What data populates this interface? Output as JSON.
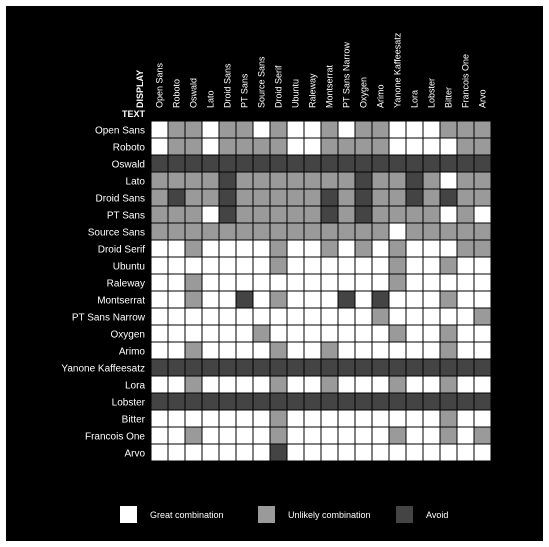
{
  "chart_data": {
    "type": "heatmap",
    "column_axis_title": "DISPLAY",
    "row_axis_title": "TEXT",
    "columns": [
      "Open Sans",
      "Roboto",
      "Oswald",
      "Lato",
      "Droid Sans",
      "PT Sans",
      "Source Sans",
      "Droid Serif",
      "Ubuntu",
      "Raleway",
      "Montserrat",
      "PT Sans Narrow",
      "Oxygen",
      "Arimo",
      "Yanone Kaffeesatz",
      "Lora",
      "Lobster",
      "Bitter",
      "Francois One",
      "Arvo"
    ],
    "rows": [
      "Open Sans",
      "Roboto",
      "Oswald",
      "Lato",
      "Droid Sans",
      "PT Sans",
      "Source Sans",
      "Droid Serif",
      "Ubuntu",
      "Raleway",
      "Montserrat",
      "PT Sans Narrow",
      "Oxygen",
      "Arimo",
      "Yanone Kaffeesatz",
      "Lora",
      "Lobster",
      "Bitter",
      "Francois One",
      "Arvo"
    ],
    "levels": [
      {
        "value": 2,
        "label": "Great combination",
        "color": "#ffffff"
      },
      {
        "value": 1,
        "label": "Unlikely combination",
        "color": "#9a9a9a"
      },
      {
        "value": 0,
        "label": "Avoid",
        "color": "#444444"
      }
    ],
    "values": [
      [
        2,
        1,
        1,
        2,
        1,
        1,
        2,
        1,
        2,
        2,
        1,
        2,
        1,
        1,
        2,
        2,
        2,
        1,
        1,
        1
      ],
      [
        2,
        1,
        1,
        2,
        1,
        1,
        1,
        1,
        2,
        2,
        1,
        1,
        1,
        1,
        2,
        2,
        2,
        2,
        1,
        1
      ],
      [
        0,
        0,
        0,
        0,
        0,
        0,
        0,
        0,
        0,
        0,
        0,
        0,
        0,
        0,
        0,
        0,
        0,
        0,
        0,
        0
      ],
      [
        1,
        1,
        1,
        1,
        0,
        1,
        1,
        1,
        1,
        1,
        1,
        1,
        0,
        1,
        1,
        0,
        1,
        2,
        1,
        1
      ],
      [
        1,
        0,
        1,
        1,
        0,
        1,
        1,
        1,
        1,
        1,
        0,
        1,
        0,
        1,
        1,
        0,
        1,
        0,
        1,
        1
      ],
      [
        1,
        1,
        1,
        2,
        0,
        1,
        1,
        1,
        1,
        1,
        0,
        1,
        0,
        1,
        1,
        1,
        1,
        2,
        1,
        2
      ],
      [
        1,
        1,
        1,
        1,
        1,
        1,
        1,
        1,
        1,
        1,
        1,
        1,
        1,
        1,
        2,
        1,
        1,
        1,
        1,
        1
      ],
      [
        2,
        2,
        1,
        2,
        2,
        2,
        2,
        1,
        2,
        2,
        1,
        2,
        1,
        2,
        1,
        2,
        2,
        2,
        1,
        1
      ],
      [
        2,
        2,
        2,
        2,
        2,
        2,
        2,
        1,
        2,
        2,
        2,
        2,
        2,
        2,
        1,
        2,
        2,
        1,
        2,
        2
      ],
      [
        2,
        2,
        1,
        2,
        2,
        2,
        2,
        2,
        2,
        2,
        2,
        2,
        2,
        2,
        1,
        2,
        2,
        2,
        2,
        2
      ],
      [
        2,
        2,
        1,
        2,
        2,
        0,
        2,
        1,
        2,
        2,
        2,
        0,
        2,
        0,
        2,
        2,
        2,
        1,
        2,
        2
      ],
      [
        2,
        2,
        2,
        2,
        2,
        2,
        2,
        2,
        2,
        2,
        2,
        2,
        2,
        1,
        2,
        2,
        2,
        2,
        2,
        1
      ],
      [
        2,
        2,
        2,
        2,
        2,
        2,
        1,
        2,
        2,
        2,
        2,
        2,
        2,
        2,
        1,
        2,
        2,
        1,
        2,
        2
      ],
      [
        2,
        2,
        1,
        2,
        2,
        2,
        2,
        1,
        2,
        2,
        1,
        2,
        2,
        2,
        2,
        2,
        2,
        1,
        2,
        2
      ],
      [
        0,
        0,
        0,
        0,
        0,
        0,
        0,
        0,
        0,
        0,
        0,
        0,
        0,
        0,
        0,
        0,
        0,
        0,
        0,
        0
      ],
      [
        2,
        2,
        1,
        2,
        2,
        2,
        2,
        1,
        2,
        2,
        1,
        2,
        2,
        2,
        1,
        2,
        2,
        1,
        2,
        2
      ],
      [
        0,
        0,
        0,
        0,
        0,
        0,
        0,
        0,
        0,
        0,
        0,
        0,
        0,
        0,
        0,
        0,
        0,
        0,
        0,
        0
      ],
      [
        2,
        2,
        2,
        2,
        2,
        2,
        2,
        1,
        2,
        2,
        2,
        2,
        2,
        2,
        2,
        2,
        2,
        1,
        2,
        2
      ],
      [
        2,
        2,
        1,
        2,
        2,
        2,
        2,
        1,
        2,
        2,
        2,
        2,
        2,
        2,
        1,
        2,
        2,
        1,
        2,
        1
      ],
      [
        2,
        2,
        2,
        2,
        2,
        2,
        2,
        0,
        2,
        2,
        2,
        2,
        2,
        2,
        2,
        2,
        2,
        2,
        2,
        2
      ]
    ],
    "legend_position": "bottom"
  }
}
